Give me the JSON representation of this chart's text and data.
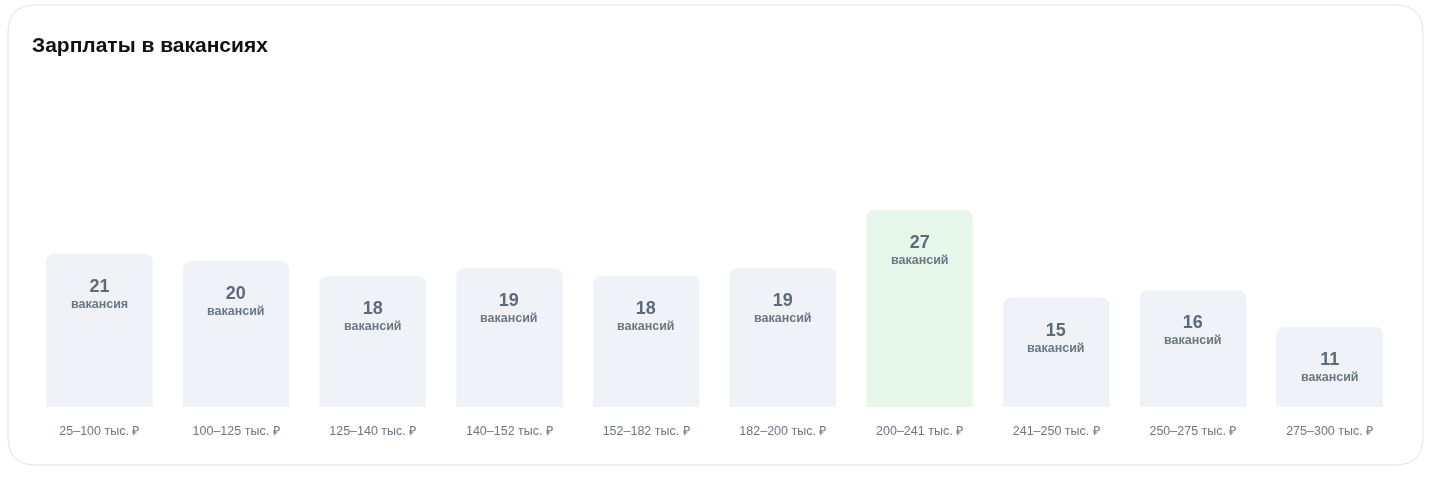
{
  "chart_data": {
    "type": "bar",
    "title": "Зарплаты в вакансиях",
    "categories": [
      "25–100 тыс. ₽",
      "100–125 тыс. ₽",
      "125–140 тыс. ₽",
      "140–152 тыс. ₽",
      "152–182 тыс. ₽",
      "182–200 тыс. ₽",
      "200–241 тыс. ₽",
      "241–250 тыс. ₽",
      "250–275 тыс. ₽",
      "275–300 тыс. ₽"
    ],
    "values": [
      21,
      20,
      18,
      19,
      18,
      19,
      27,
      15,
      16,
      11
    ],
    "colors": [
      "#eff3f8",
      "#eff3f8",
      "#eff3f8",
      "#eff3f8",
      "#eff3f8",
      "#eff3f8",
      "#e6f7ea",
      "#eff3f8",
      "#eff3f8",
      "#eff3f8"
    ],
    "value_labels": [
      "21 вакансия",
      "20 вакансий",
      "18 вакансий",
      "19 вакансий",
      "18 вакансий",
      "19 вакансий",
      "27 вакансий",
      "15 вакансий",
      "16 вакансий",
      "11 вакансий"
    ]
  }
}
